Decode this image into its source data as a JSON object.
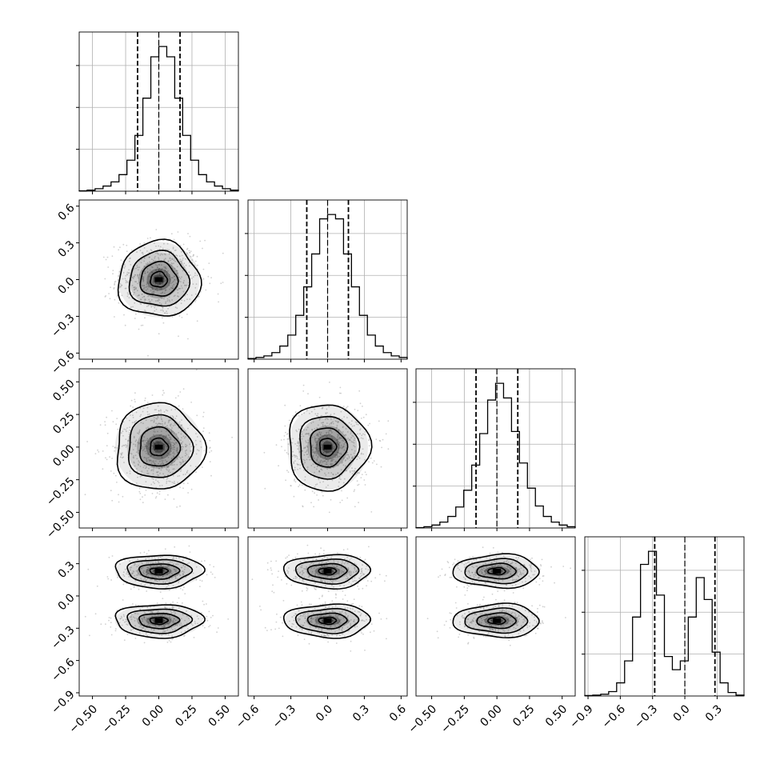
{
  "chart_data": {
    "type": "corner",
    "title": "",
    "parameters": [
      {
        "label": "",
        "range": [
          -0.6,
          0.6
        ],
        "ticks": [
          -0.5,
          -0.25,
          0.0,
          0.25,
          0.5
        ],
        "tick_labels": [
          "−0.50",
          "−0.25",
          "0.00",
          "0.25",
          "0.50"
        ],
        "quantiles": [
          -0.16,
          0.0,
          0.16
        ],
        "histogram": {
          "bin_edges": [
            -0.6,
            -0.54,
            -0.48,
            -0.42,
            -0.36,
            -0.3,
            -0.24,
            -0.18,
            -0.12,
            -0.06,
            0.0,
            0.06,
            0.12,
            0.18,
            0.24,
            0.3,
            0.36,
            0.42,
            0.48,
            0.54,
            0.6
          ],
          "counts": [
            2,
            5,
            12,
            25,
            45,
            80,
            150,
            270,
            450,
            650,
            700,
            650,
            450,
            270,
            150,
            80,
            45,
            25,
            12,
            5
          ]
        }
      },
      {
        "label": "",
        "range": [
          -0.65,
          0.65
        ],
        "ticks": [
          -0.6,
          -0.3,
          0.0,
          0.3,
          0.6
        ],
        "tick_labels": [
          "−0.6",
          "−0.3",
          "0.0",
          "0.3",
          "0.6"
        ],
        "quantiles": [
          -0.17,
          0.0,
          0.17
        ],
        "histogram": {
          "bin_edges": [
            -0.65,
            -0.585,
            -0.52,
            -0.455,
            -0.39,
            -0.325,
            -0.26,
            -0.195,
            -0.13,
            -0.065,
            0.0,
            0.065,
            0.13,
            0.195,
            0.26,
            0.325,
            0.39,
            0.455,
            0.52,
            0.585,
            0.65
          ],
          "counts": [
            3,
            8,
            15,
            30,
            60,
            110,
            200,
            330,
            480,
            640,
            660,
            640,
            480,
            330,
            200,
            110,
            60,
            30,
            15,
            8
          ]
        }
      },
      {
        "label": "",
        "range": [
          -0.62,
          0.6
        ],
        "ticks": [
          -0.5,
          -0.25,
          0.0,
          0.25,
          0.5
        ],
        "tick_labels": [
          "−0.50",
          "−0.25",
          "0.00",
          "0.25",
          "0.50"
        ],
        "quantiles": [
          -0.16,
          0.0,
          0.16
        ],
        "histogram": {
          "bin_edges": [
            -0.62,
            -0.559,
            -0.498,
            -0.437,
            -0.376,
            -0.315,
            -0.254,
            -0.193,
            -0.132,
            -0.071,
            -0.01,
            0.051,
            0.112,
            0.173,
            0.234,
            0.295,
            0.356,
            0.417,
            0.478,
            0.539,
            0.6
          ],
          "counts": [
            2,
            6,
            14,
            28,
            55,
            100,
            180,
            300,
            450,
            610,
            690,
            620,
            460,
            310,
            190,
            105,
            55,
            28,
            14,
            6
          ]
        }
      },
      {
        "label": "",
        "range": [
          -0.93,
          0.55
        ],
        "ticks": [
          -0.9,
          -0.6,
          -0.3,
          0.0,
          0.3
        ],
        "tick_labels": [
          "−0.9",
          "−0.6",
          "−0.3",
          "0.0",
          "0.3"
        ],
        "quantiles": [
          -0.28,
          0.0,
          0.28
        ],
        "histogram": {
          "bin_edges": [
            -0.93,
            -0.856,
            -0.782,
            -0.708,
            -0.634,
            -0.56,
            -0.486,
            -0.412,
            -0.338,
            -0.264,
            -0.19,
            -0.116,
            -0.042,
            0.032,
            0.106,
            0.18,
            0.254,
            0.328,
            0.402,
            0.476,
            0.55
          ],
          "counts": [
            1,
            2,
            4,
            10,
            30,
            80,
            180,
            300,
            330,
            230,
            90,
            60,
            80,
            180,
            270,
            220,
            100,
            30,
            8,
            2
          ]
        }
      }
    ],
    "pairs": [
      {
        "x": 0,
        "y": 1,
        "modes": [
          [
            0.0,
            0.0
          ]
        ],
        "spread": [
          0.14,
          0.14
        ]
      },
      {
        "x": 0,
        "y": 2,
        "modes": [
          [
            0.0,
            0.0
          ]
        ],
        "spread": [
          0.15,
          0.15
        ]
      },
      {
        "x": 1,
        "y": 2,
        "modes": [
          [
            0.0,
            0.0
          ]
        ],
        "spread": [
          0.15,
          0.15
        ]
      },
      {
        "x": 0,
        "y": 3,
        "modes": [
          [
            0.0,
            0.23
          ],
          [
            0.0,
            -0.23
          ]
        ],
        "spread": [
          0.15,
          0.07
        ]
      },
      {
        "x": 1,
        "y": 3,
        "modes": [
          [
            0.0,
            0.23
          ],
          [
            0.0,
            -0.23
          ]
        ],
        "spread": [
          0.16,
          0.07
        ]
      },
      {
        "x": 2,
        "y": 3,
        "modes": [
          [
            0.0,
            0.23
          ],
          [
            0.0,
            -0.23
          ]
        ],
        "spread": [
          0.15,
          0.07
        ]
      }
    ],
    "contour_levels": [
      0.39,
      0.86,
      0.99
    ],
    "grid": true,
    "legend": "none",
    "colors": {
      "line": "#000000",
      "grid": "#b0b0b0",
      "points": "#9a9a9a",
      "density": "#000000"
    }
  }
}
